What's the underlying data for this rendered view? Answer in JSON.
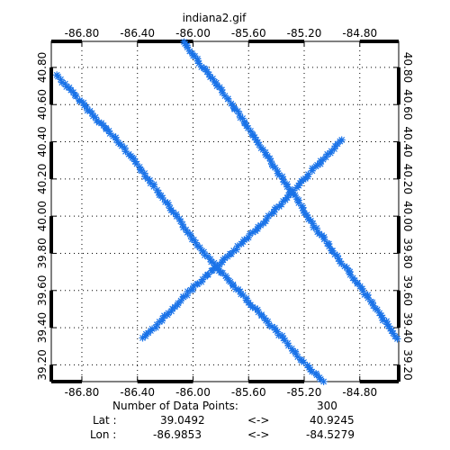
{
  "chart_data": {
    "type": "scatter",
    "title": "indiana2.gif",
    "marker": "asterisk",
    "marker_color": "#1a73e8",
    "grid": true,
    "grid_style": "dotted",
    "xlim": [
      -87.02,
      -84.52
    ],
    "ylim": [
      39.11,
      40.94
    ],
    "x_ticks": [
      -86.8,
      -86.4,
      -86.0,
      -85.6,
      -85.2,
      -84.8
    ],
    "x_tick_labels": [
      "-86.80",
      "-86.40",
      "-86.00",
      "-85.60",
      "-85.20",
      "-84.80"
    ],
    "y_ticks": [
      39.2,
      39.4,
      39.6,
      39.8,
      40.0,
      40.2,
      40.4,
      40.6,
      40.8
    ],
    "y_tick_labels": [
      "39.20",
      "39.40",
      "39.60",
      "39.80",
      "40.00",
      "40.20",
      "40.40",
      "40.60",
      "40.80"
    ],
    "series": [
      {
        "points": [
          [
            -86.98,
            40.76
          ],
          [
            -86.85,
            40.65
          ],
          [
            -86.7,
            40.53
          ],
          [
            -86.55,
            40.41
          ],
          [
            -86.4,
            40.28
          ],
          [
            -86.25,
            40.13
          ],
          [
            -86.1,
            39.98
          ],
          [
            -85.95,
            39.83
          ],
          [
            -85.8,
            39.7
          ],
          [
            -85.65,
            39.58
          ],
          [
            -85.5,
            39.46
          ],
          [
            -85.35,
            39.34
          ],
          [
            -85.2,
            39.21
          ],
          [
            -85.06,
            39.11
          ]
        ]
      },
      {
        "points": [
          [
            -86.07,
            40.94
          ],
          [
            -85.95,
            40.82
          ],
          [
            -85.82,
            40.7
          ],
          [
            -85.68,
            40.56
          ],
          [
            -85.55,
            40.42
          ],
          [
            -85.42,
            40.27
          ],
          [
            -85.28,
            40.12
          ],
          [
            -85.15,
            39.97
          ],
          [
            -85.0,
            39.82
          ],
          [
            -84.85,
            39.67
          ],
          [
            -84.7,
            39.52
          ],
          [
            -84.53,
            39.34
          ]
        ]
      },
      {
        "points": [
          [
            -86.36,
            39.34
          ],
          [
            -86.2,
            39.46
          ],
          [
            -86.05,
            39.58
          ],
          [
            -85.9,
            39.68
          ],
          [
            -85.75,
            39.78
          ],
          [
            -85.6,
            39.89
          ],
          [
            -85.45,
            40.0
          ],
          [
            -85.3,
            40.12
          ],
          [
            -85.15,
            40.24
          ],
          [
            -85.0,
            40.35
          ],
          [
            -84.93,
            40.41
          ]
        ]
      }
    ]
  },
  "info": {
    "count_label": "Number of Data Points:",
    "count_value": "300",
    "lat_label": "Lat :",
    "lat_min": "39.0492",
    "lat_arrow": "<->",
    "lat_max": "40.9245",
    "lon_label": "Lon :",
    "lon_min": "-86.9853",
    "lon_arrow": "<->",
    "lon_max": "-84.5279"
  }
}
